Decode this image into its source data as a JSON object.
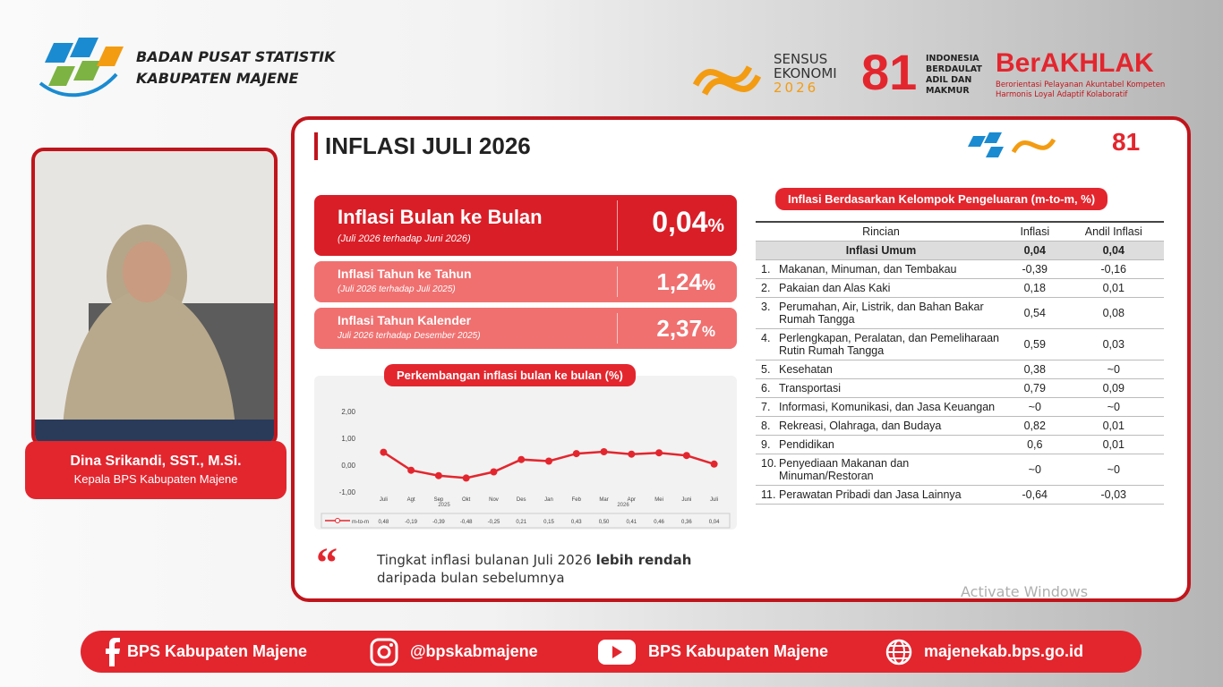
{
  "header": {
    "org_line1": "BADAN PUSAT STATISTIK",
    "org_line2": "KABUPATEN MAJENE",
    "sensus_line1": "SENSUS",
    "sensus_line2": "EKONOMI",
    "sensus_year": "2026",
    "indonesia": "INDONESIA BERDAULAT ADIL DAN MAKMUR",
    "berakhlak": "BerAKHLAK",
    "berakhlak_tagline": "Berorientasi Pelayanan Akuntabel Kompeten Harmonis Loyal Adaptif Kolaboratif"
  },
  "speaker": {
    "name": "Dina Srikandi, SST., M.Si.",
    "role": "Kepala BPS Kabupaten Majene"
  },
  "slide": {
    "title": "INFLASI JULI 2026",
    "stats": [
      {
        "label": "Inflasi Bulan ke Bulan",
        "sub": "(Juli 2026 terhadap Juni 2026)",
        "value": "0,04",
        "unit": "%"
      },
      {
        "label": "Inflasi Tahun ke Tahun",
        "sub": "(Juli 2026 terhadap Juli 2025)",
        "value": "1,24",
        "unit": "%"
      },
      {
        "label": "Inflasi Tahun Kalender",
        "sub": "Juli 2026 terhadap Desember 2025)",
        "value": "2,37",
        "unit": "%"
      }
    ],
    "quote_text": "Tingkat inflasi bulanan Juli 2026",
    "quote_bold": "lebih rendah",
    "quote_end": "daripada bulan sebelumnya"
  },
  "chart_data": {
    "type": "line",
    "title": "Perkembangan inflasi bulan ke bulan (%)",
    "categories": [
      "Juli",
      "Agt",
      "Sep",
      "Okt",
      "Nov",
      "Des",
      "Jan",
      "Feb",
      "Mar",
      "Apr",
      "Mei",
      "Juni",
      "Juli"
    ],
    "x_groups": [
      "2025",
      "2026"
    ],
    "series": [
      {
        "name": "m-to-m",
        "color": "#e3262e",
        "values": [
          0.48,
          -0.19,
          -0.39,
          -0.48,
          -0.25,
          0.21,
          0.15,
          0.43,
          0.5,
          0.41,
          0.46,
          0.36,
          0.04
        ],
        "value_labels": [
          "0,48",
          "-0,19",
          "-0,39",
          "-0,48",
          "-0,25",
          "0,21",
          "0,15",
          "0,43",
          "0,50",
          "0,41",
          "0,46",
          "0,36",
          "0,04"
        ]
      }
    ],
    "ylim": [
      -1,
      2
    ],
    "yticks": [
      {
        "value": -1,
        "label": "-1,00"
      },
      {
        "value": 0,
        "label": "0,00"
      },
      {
        "value": 1,
        "label": "1,00"
      },
      {
        "value": 2,
        "label": "2,00"
      }
    ]
  },
  "table": {
    "title": "Inflasi Berdasarkan Kelompok Pengeluaran (m-to-m, %)",
    "columns": [
      "Rincian",
      "Inflasi",
      "Andil Inflasi"
    ],
    "total": [
      "Inflasi Umum",
      "0,04",
      "0,04"
    ],
    "rows": [
      [
        "1.",
        "Makanan, Minuman, dan Tembakau",
        "-0,39",
        "-0,16"
      ],
      [
        "2.",
        "Pakaian dan Alas Kaki",
        "0,18",
        "0,01"
      ],
      [
        "3.",
        "Perumahan, Air, Listrik, dan Bahan Bakar Rumah Tangga",
        "0,54",
        "0,08"
      ],
      [
        "4.",
        "Perlengkapan, Peralatan, dan Pemeliharaan Rutin Rumah Tangga",
        "0,59",
        "0,03"
      ],
      [
        "5.",
        "Kesehatan",
        "0,38",
        "~0"
      ],
      [
        "6.",
        "Transportasi",
        "0,79",
        "0,09"
      ],
      [
        "7.",
        "Informasi, Komunikasi, dan Jasa Keuangan",
        "~0",
        "~0"
      ],
      [
        "8.",
        "Rekreasi, Olahraga, dan Budaya",
        "0,82",
        "0,01"
      ],
      [
        "9.",
        "Pendidikan",
        "0,6",
        "0,01"
      ],
      [
        "10.",
        "Penyediaan Makanan dan Minuman/Restoran",
        "~0",
        "~0"
      ],
      [
        "11.",
        "Perawatan Pribadi dan Jasa Lainnya",
        "-0,64",
        "-0,03"
      ]
    ]
  },
  "footer": {
    "facebook": "BPS Kabupaten Majene",
    "instagram": "@bpskabmajene",
    "youtube": "BPS Kabupaten Majene",
    "web": "majenekab.bps.go.id"
  },
  "watermark": "Activate Windows"
}
